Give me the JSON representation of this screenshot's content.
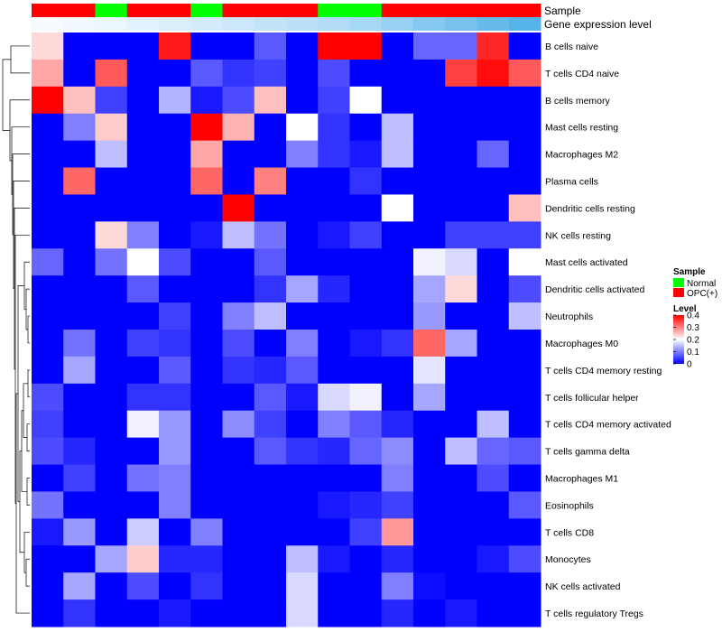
{
  "chart_data": {
    "type": "heatmap",
    "annotation_titles": {
      "sample": "Sample",
      "gene": "Gene expression level"
    },
    "rows": [
      "B cells naive",
      "T cells CD4 naive",
      "B cells memory",
      "Mast cells resting",
      "Macrophages M2",
      "Plasma cells",
      "Dendritic cells resting",
      "NK cells resting",
      "Mast cells activated",
      "Dendritic cells activated",
      "Neutrophils",
      "Macrophages M0",
      "T cells CD4 memory resting",
      "T cells follicular helper",
      "T cells CD4 memory activated",
      "T cells gamma delta",
      "Macrophages M1",
      "Eosinophils",
      "T cells CD8",
      "Monocytes",
      "NK cells activated",
      "T cells regulatory  Tregs"
    ],
    "sample_groups": [
      "OPC(+)",
      "OPC(+)",
      "Normal",
      "OPC(+)",
      "OPC(+)",
      "Normal",
      "OPC(+)",
      "OPC(+)",
      "OPC(+)",
      "Normal",
      "Normal",
      "OPC(+)",
      "OPC(+)",
      "OPC(+)",
      "OPC(+)",
      "OPC(+)"
    ],
    "gene_expression_levels": [
      0.02,
      0.05,
      0.08,
      0.12,
      0.16,
      0.2,
      0.24,
      0.28,
      0.32,
      0.36,
      0.42,
      0.5,
      0.58,
      0.66,
      0.74,
      0.82
    ],
    "values": [
      [
        0.23,
        0.0,
        0.0,
        0.0,
        0.38,
        0.0,
        0.0,
        0.07,
        0.0,
        0.4,
        0.4,
        0.0,
        0.08,
        0.08,
        0.37,
        0.0
      ],
      [
        0.27,
        0.0,
        0.33,
        0.0,
        0.0,
        0.07,
        0.04,
        0.05,
        0.0,
        0.06,
        0.0,
        0.0,
        0.0,
        0.35,
        0.39,
        0.33
      ],
      [
        0.4,
        0.25,
        0.05,
        0.0,
        0.14,
        0.02,
        0.06,
        0.25,
        0.0,
        0.05,
        0.2,
        0.0,
        0.0,
        0.0,
        0.0,
        0.0
      ],
      [
        0.0,
        0.1,
        0.24,
        0.0,
        0.0,
        0.4,
        0.26,
        0.0,
        0.2,
        0.04,
        0.0,
        0.15,
        0.0,
        0.0,
        0.0,
        0.0
      ],
      [
        0.0,
        0.0,
        0.15,
        0.0,
        0.0,
        0.27,
        0.0,
        0.0,
        0.1,
        0.04,
        0.02,
        0.15,
        0.0,
        0.0,
        0.08,
        0.0
      ],
      [
        0.0,
        0.32,
        0.0,
        0.0,
        0.0,
        0.32,
        0.0,
        0.3,
        0.0,
        0.0,
        0.04,
        0.0,
        0.0,
        0.0,
        0.0,
        0.0
      ],
      [
        0.0,
        0.0,
        0.0,
        0.0,
        0.0,
        0.0,
        0.4,
        0.0,
        0.0,
        0.0,
        0.0,
        0.2,
        0.0,
        0.0,
        0.0,
        0.25
      ],
      [
        0.0,
        0.0,
        0.23,
        0.1,
        0.0,
        0.02,
        0.15,
        0.09,
        0.0,
        0.02,
        0.05,
        0.0,
        0.0,
        0.05,
        0.05,
        0.05
      ],
      [
        0.08,
        0.0,
        0.09,
        0.2,
        0.06,
        0.0,
        0.0,
        0.07,
        0.0,
        0.0,
        0.0,
        0.0,
        0.19,
        0.17,
        0.0,
        0.2
      ],
      [
        0.0,
        0.0,
        0.0,
        0.07,
        0.0,
        0.0,
        0.0,
        0.04,
        0.13,
        0.03,
        0.0,
        0.0,
        0.13,
        0.23,
        0.0,
        0.06
      ],
      [
        0.0,
        0.0,
        0.0,
        0.0,
        0.05,
        0.0,
        0.1,
        0.15,
        0.0,
        0.0,
        0.0,
        0.0,
        0.12,
        0.0,
        0.0,
        0.15
      ],
      [
        0.0,
        0.09,
        0.0,
        0.05,
        0.04,
        0.0,
        0.06,
        0.0,
        0.1,
        0.0,
        0.02,
        0.04,
        0.32,
        0.13,
        0.0,
        0.0
      ],
      [
        0.0,
        0.13,
        0.0,
        0.0,
        0.07,
        0.0,
        0.04,
        0.03,
        0.07,
        0.0,
        0.0,
        0.0,
        0.18,
        0.0,
        0.0,
        0.0
      ],
      [
        0.06,
        0.0,
        0.0,
        0.04,
        0.04,
        0.0,
        0.0,
        0.07,
        0.02,
        0.17,
        0.19,
        0.0,
        0.13,
        0.0,
        0.0,
        0.0
      ],
      [
        0.05,
        0.0,
        0.0,
        0.19,
        0.12,
        0.0,
        0.11,
        0.05,
        0.0,
        0.1,
        0.07,
        0.03,
        0.0,
        0.0,
        0.15,
        0.0
      ],
      [
        0.06,
        0.03,
        0.0,
        0.0,
        0.12,
        0.0,
        0.0,
        0.07,
        0.04,
        0.03,
        0.08,
        0.11,
        0.0,
        0.15,
        0.08,
        0.07
      ],
      [
        0.0,
        0.05,
        0.0,
        0.09,
        0.1,
        0.0,
        0.0,
        0.0,
        0.0,
        0.0,
        0.0,
        0.1,
        0.0,
        0.0,
        0.06,
        0.0
      ],
      [
        0.09,
        0.0,
        0.0,
        0.0,
        0.1,
        0.0,
        0.0,
        0.0,
        0.0,
        0.02,
        0.03,
        0.05,
        0.0,
        0.0,
        0.0,
        0.07
      ],
      [
        0.02,
        0.12,
        0.0,
        0.16,
        0.0,
        0.1,
        0.0,
        0.0,
        0.0,
        0.0,
        0.05,
        0.28,
        0.0,
        0.0,
        0.0,
        0.0
      ],
      [
        0.0,
        0.0,
        0.13,
        0.24,
        0.03,
        0.03,
        0.0,
        0.0,
        0.15,
        0.02,
        0.0,
        0.03,
        0.0,
        0.0,
        0.02,
        0.06
      ],
      [
        0.0,
        0.13,
        0.0,
        0.06,
        0.0,
        0.04,
        0.0,
        0.0,
        0.17,
        0.0,
        0.0,
        0.1,
        0.01,
        0.0,
        0.0,
        0.0
      ],
      [
        0.0,
        0.04,
        0.0,
        0.0,
        0.02,
        0.0,
        0.0,
        0.0,
        0.17,
        0.0,
        0.0,
        0.03,
        0.0,
        0.02,
        0.0,
        0.0
      ]
    ],
    "color_scale": {
      "min": 0,
      "mid": 0.2,
      "max": 0.4,
      "low": "#0000ff",
      "mid_color": "#ffffff",
      "high": "#ff0000"
    },
    "legend": {
      "sample_title": "Sample",
      "sample_items": [
        {
          "label": "Normal",
          "color": "#00ff00"
        },
        {
          "label": "OPC(+)",
          "color": "#ff0000"
        }
      ],
      "level_title": "Level",
      "level_ticks": [
        "0.4",
        "0.3",
        "0.2",
        "0.1",
        "0"
      ]
    },
    "gene_colors": {
      "low": "#f7fbff",
      "high": "#56b4e9"
    },
    "dendrogram": "rows"
  }
}
